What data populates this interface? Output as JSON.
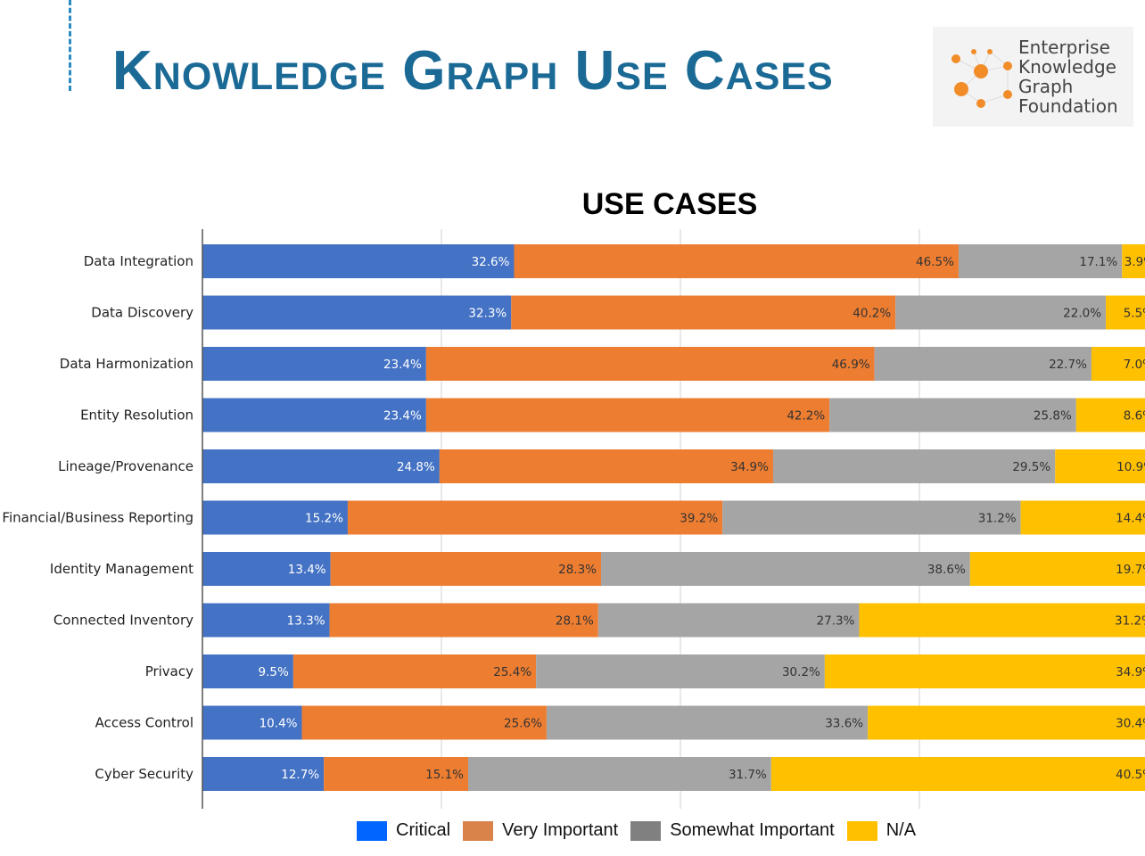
{
  "header": {
    "title": "Knowledge Graph Use Cases"
  },
  "logo": {
    "lines": [
      "Enterprise",
      "Knowledge",
      "Graph",
      "Foundation"
    ]
  },
  "chart_data": {
    "type": "bar",
    "orientation": "horizontal",
    "stacked": true,
    "title": "USE CASES",
    "categories": [
      "Data Integration",
      "Data Discovery",
      "Data Harmonization",
      "Entity Resolution",
      "Lineage/Provenance",
      "Financial/Business Reporting",
      "Identity Management",
      "Connected Inventory",
      "Privacy",
      "Access Control",
      "Cyber Security"
    ],
    "series": [
      {
        "name": "Critical",
        "color": "#4472c4",
        "legend_color": "#0066ff",
        "values": [
          32.6,
          32.3,
          23.4,
          23.4,
          24.8,
          15.2,
          13.4,
          13.3,
          9.5,
          10.4,
          12.7
        ]
      },
      {
        "name": "Very Important",
        "color": "#ed7d31",
        "legend_color": "#d9824a",
        "values": [
          46.5,
          40.2,
          46.9,
          42.2,
          34.9,
          39.2,
          28.3,
          28.1,
          25.4,
          25.6,
          15.1
        ]
      },
      {
        "name": "Somewhat Important",
        "color": "#a5a5a5",
        "legend_color": "#808080",
        "values": [
          17.1,
          22.0,
          22.7,
          25.8,
          29.5,
          31.2,
          38.6,
          27.3,
          30.2,
          33.6,
          31.7
        ]
      },
      {
        "name": "N/A",
        "color": "#ffc000",
        "legend_color": "#ffc000",
        "values": [
          3.9,
          5.5,
          7.0,
          8.6,
          10.9,
          14.4,
          19.7,
          31.2,
          34.9,
          30.4,
          40.5
        ]
      }
    ],
    "xlim": [
      0,
      100
    ],
    "grid": true,
    "legend": "bottom"
  }
}
